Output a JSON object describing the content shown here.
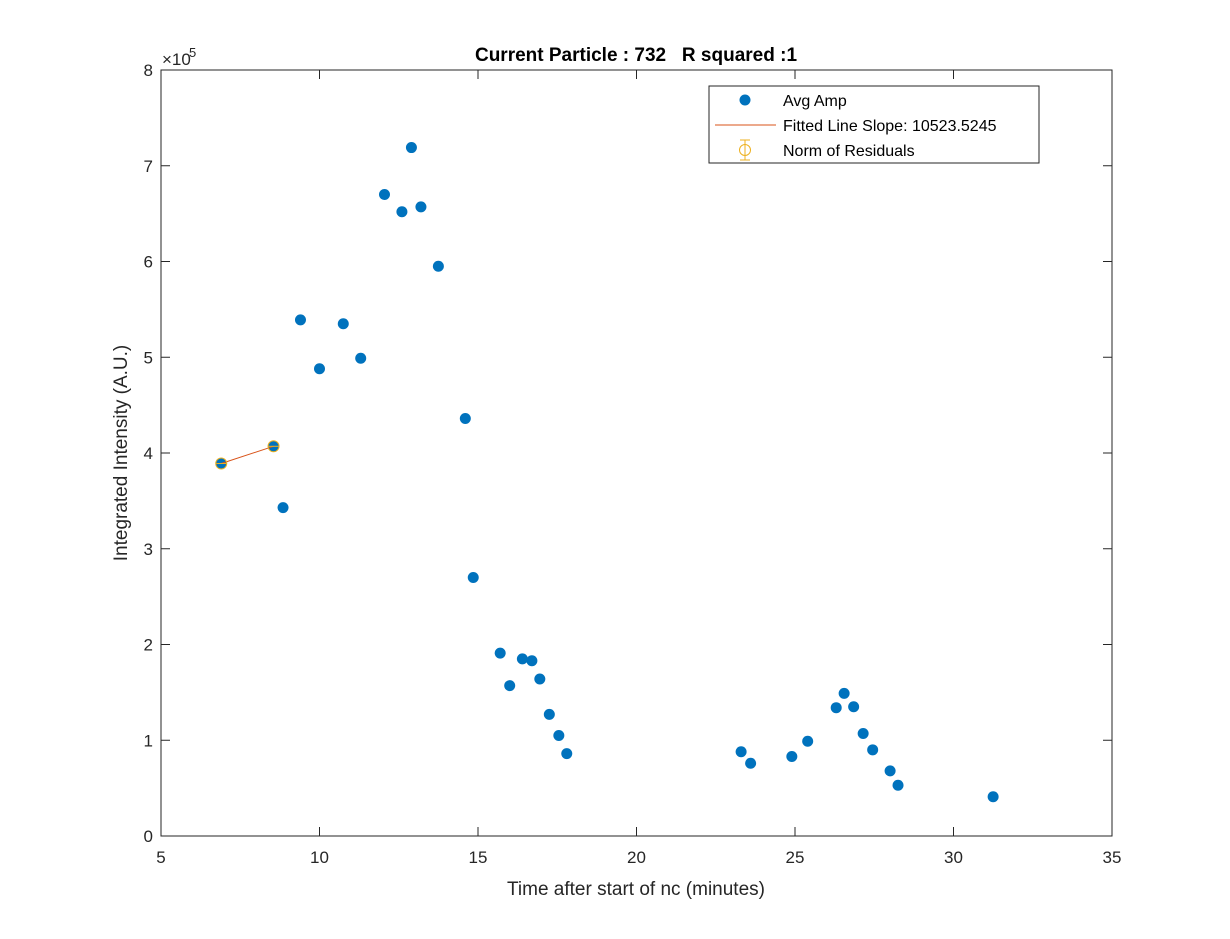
{
  "chart_data": {
    "type": "scatter",
    "title": "Current Particle : 732   R squared :1",
    "xlabel": "Time after start of nc (minutes)",
    "ylabel": "Integrated Intensity (A.U.)",
    "xlim": [
      5,
      35
    ],
    "ylim": [
      0,
      8
    ],
    "y_exponent_label": "×10",
    "y_exponent_power": "5",
    "xticks": [
      5,
      10,
      15,
      20,
      25,
      30,
      35
    ],
    "yticks": [
      0,
      1,
      2,
      3,
      4,
      5,
      6,
      7,
      8
    ],
    "xtick_labels": [
      "5",
      "10",
      "15",
      "20",
      "25",
      "30",
      "35"
    ],
    "ytick_labels": [
      "0",
      "1",
      "2",
      "3",
      "4",
      "5",
      "6",
      "7",
      "8"
    ],
    "grid": false,
    "legend_position": "top-right",
    "series": [
      {
        "name": "Avg Amp",
        "kind": "scatter",
        "color": "#0072BD",
        "points": [
          [
            6.9,
            3.89
          ],
          [
            8.55,
            4.07
          ],
          [
            8.85,
            3.43
          ],
          [
            9.4,
            5.39
          ],
          [
            10.0,
            4.88
          ],
          [
            10.75,
            5.35
          ],
          [
            11.3,
            4.99
          ],
          [
            12.05,
            6.7
          ],
          [
            12.6,
            6.52
          ],
          [
            12.9,
            7.19
          ],
          [
            13.2,
            6.57
          ],
          [
            13.75,
            5.95
          ],
          [
            14.6,
            4.36
          ],
          [
            14.85,
            2.7
          ],
          [
            15.7,
            1.91
          ],
          [
            16.0,
            1.57
          ],
          [
            16.4,
            1.85
          ],
          [
            16.7,
            1.83
          ],
          [
            16.95,
            1.64
          ],
          [
            17.25,
            1.27
          ],
          [
            17.55,
            1.05
          ],
          [
            17.8,
            0.86
          ],
          [
            23.3,
            0.88
          ],
          [
            23.6,
            0.76
          ],
          [
            24.9,
            0.83
          ],
          [
            25.4,
            0.99
          ],
          [
            26.3,
            1.34
          ],
          [
            26.55,
            1.49
          ],
          [
            26.85,
            1.35
          ],
          [
            27.15,
            1.07
          ],
          [
            27.45,
            0.9
          ],
          [
            28.0,
            0.68
          ],
          [
            28.25,
            0.53
          ],
          [
            31.25,
            0.41
          ]
        ]
      },
      {
        "name": "Fitted Line Slope: 10523.5245",
        "kind": "line",
        "color": "#D95319",
        "points": [
          [
            6.9,
            3.89
          ],
          [
            8.55,
            4.07
          ]
        ]
      },
      {
        "name": "Norm of Residuals",
        "kind": "errorbar",
        "color": "#EDB120",
        "points": [
          [
            6.9,
            3.89
          ],
          [
            8.55,
            4.07
          ]
        ]
      }
    ]
  }
}
